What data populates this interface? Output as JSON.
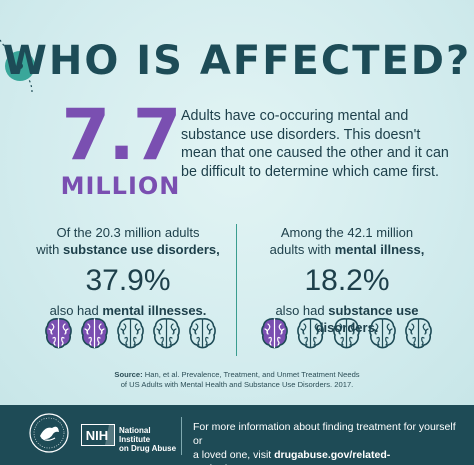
{
  "title": "WHO IS AFFECTED?",
  "headline": {
    "number": "7.7",
    "unit": "MILLION",
    "description": "Adults have co-occuring mental and substance use disorders. This doesn't mean that one caused the other and it can be difficult to determine which came first."
  },
  "left_stat": {
    "line1": "Of the 20.3 million adults",
    "line2_prefix": "with ",
    "line2_bold": "substance use disorders,",
    "percent": "37.9%",
    "after_prefix": "also had ",
    "after_bold": "mental illnesses.",
    "highlighted_brains": 2,
    "total_brains": 5
  },
  "right_stat": {
    "line1": "Among the 42.1 million",
    "line2_prefix": "adults with ",
    "line2_bold": "mental illness,",
    "percent": "18.2%",
    "after_prefix": "also had ",
    "after_bold": "substance use disorders.",
    "highlighted_brains": 1,
    "total_brains": 5
  },
  "source": {
    "label": "Source:",
    "text1": " Han, et al. Prevalence, Treatment, and Unmet Treatment Needs",
    "text2": "of US Adults with Mental Health and Substance Use Disorders. 2017."
  },
  "footer": {
    "nih_logo_text": "NIH",
    "nih_label_line1": "National Institute",
    "nih_label_line2": "on Drug Abuse",
    "info_line1": "For more information about finding treatment for yourself or",
    "info_line2_prefix": "a loved one, visit ",
    "info_link": "drugabuse.gov/related-topics/treatment."
  },
  "colors": {
    "background": "#d6eff0",
    "title": "#1d4c57",
    "accent_purple": "#7a4fb1",
    "teal": "#3aa79a",
    "footer": "#1e4b56",
    "text": "#1d3f4a"
  },
  "icons": {
    "brain": "brain-icon",
    "hhs": "hhs-eagle-seal",
    "nih": "nih-logo"
  }
}
